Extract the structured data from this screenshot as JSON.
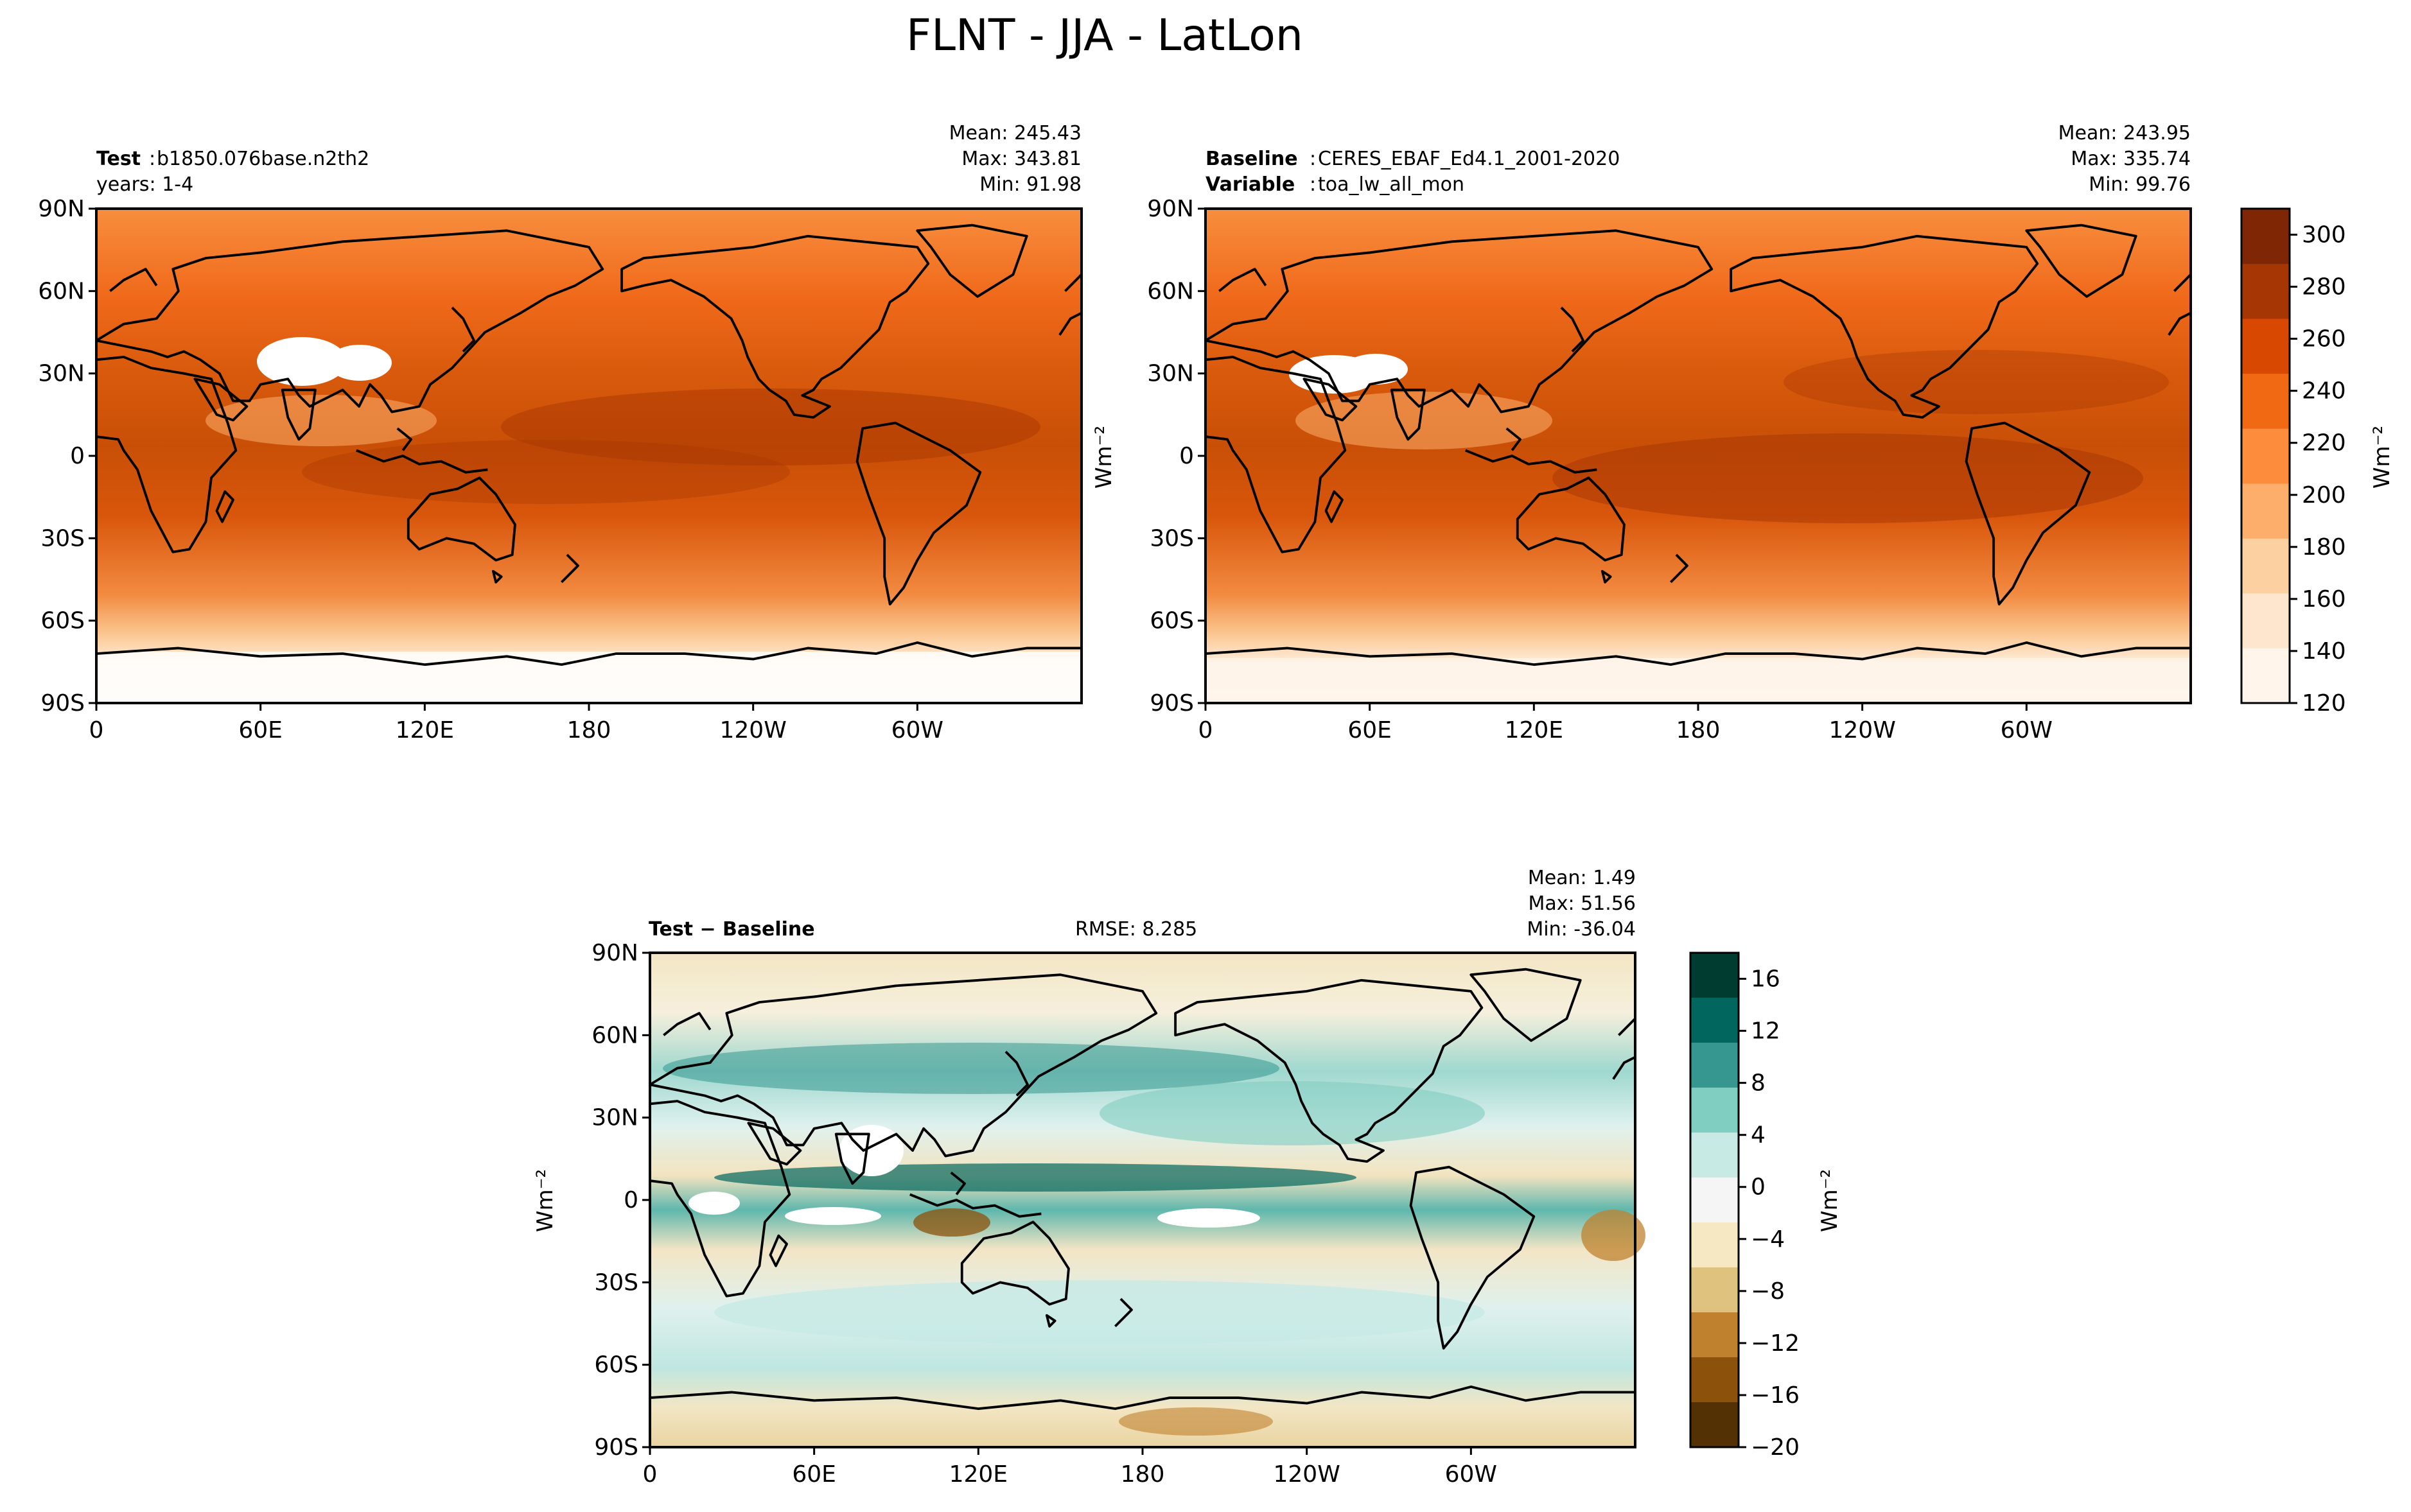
{
  "title": "FLNT - JJA - LatLon",
  "lat_ticks": [
    "90N",
    "60N",
    "30N",
    "0",
    "30S",
    "60S",
    "90S"
  ],
  "lon_ticks": [
    "0",
    "60E",
    "120E",
    "180",
    "120W",
    "60W"
  ],
  "panels": {
    "test": {
      "header_bold": "Test",
      "header_value": "b1850.076base.n2th2",
      "subline": "years: 1-4",
      "stats": {
        "mean": "Mean: 245.43",
        "max": "Max: 343.81",
        "min": "Min: 91.98"
      }
    },
    "baseline": {
      "header_bold": "Baseline",
      "header_value": "CERES_EBAF_Ed4.1_2001-2020",
      "sub_bold": "Variable",
      "sub_value": "toa_lw_all_mon",
      "stats": {
        "mean": "Mean: 243.95",
        "max": "Max: 335.74",
        "min": "Min: 99.76"
      }
    },
    "diff": {
      "header_bold": "Test − Baseline",
      "rmse": "RMSE: 8.285",
      "stats": {
        "mean": "Mean:  1.49",
        "max": "Max: 51.56",
        "min": "Min: -36.04"
      }
    }
  },
  "colorbars": {
    "main": {
      "label": "Wm⁻²",
      "ticks": [
        "120",
        "140",
        "160",
        "180",
        "200",
        "220",
        "240",
        "260",
        "280",
        "300"
      ],
      "colors": [
        "#fff5eb",
        "#fee6ce",
        "#fdd0a2",
        "#fdae6b",
        "#fd8d3c",
        "#f16913",
        "#d94801",
        "#a63603",
        "#7f2704"
      ]
    },
    "diff": {
      "label": "Wm⁻²",
      "ticks": [
        "16",
        "12",
        "8",
        "4",
        "0",
        "−4",
        "−8",
        "−12",
        "−16",
        "−20"
      ],
      "colors": [
        "#003c30",
        "#01665e",
        "#35978f",
        "#80cdc1",
        "#c7eae5",
        "#f5f5f5",
        "#f6e8c3",
        "#dfc27d",
        "#bf812d",
        "#8c510a",
        "#543005"
      ]
    }
  },
  "ylabel_units": "Wm⁻²"
}
